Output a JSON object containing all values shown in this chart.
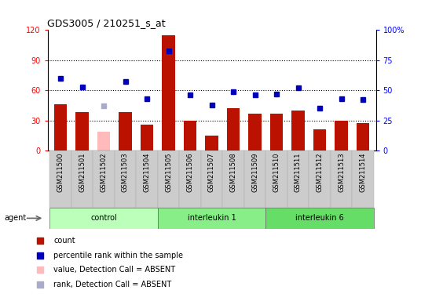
{
  "title": "GDS3005 / 210251_s_at",
  "samples": [
    "GSM211500",
    "GSM211501",
    "GSM211502",
    "GSM211503",
    "GSM211504",
    "GSM211505",
    "GSM211506",
    "GSM211507",
    "GSM211508",
    "GSM211509",
    "GSM211510",
    "GSM211511",
    "GSM211512",
    "GSM211513",
    "GSM211514"
  ],
  "bar_values": [
    46,
    38,
    19,
    38,
    26,
    115,
    30,
    15,
    42,
    37,
    37,
    40,
    21,
    30,
    27
  ],
  "bar_absent": [
    false,
    false,
    true,
    false,
    false,
    false,
    false,
    false,
    false,
    false,
    false,
    false,
    false,
    false,
    false
  ],
  "rank_values": [
    60,
    53,
    37,
    57,
    43,
    83,
    46,
    38,
    49,
    46,
    47,
    52,
    35,
    43,
    42
  ],
  "rank_absent": [
    false,
    false,
    true,
    false,
    false,
    false,
    false,
    false,
    false,
    false,
    false,
    false,
    false,
    false,
    false
  ],
  "groups": [
    {
      "label": "control",
      "start": 0,
      "end": 4,
      "color": "#bbffbb"
    },
    {
      "label": "interleukin 1",
      "start": 5,
      "end": 9,
      "color": "#88ee88"
    },
    {
      "label": "interleukin 6",
      "start": 10,
      "end": 14,
      "color": "#66dd66"
    }
  ],
  "bar_color_present": "#bb1100",
  "bar_color_absent": "#ffbbbb",
  "rank_color_present": "#0000bb",
  "rank_color_absent": "#aaaacc",
  "ylim_left": [
    0,
    120
  ],
  "yticks_left": [
    0,
    30,
    60,
    90,
    120
  ],
  "ylim_right": [
    0,
    100
  ],
  "yticks_right": [
    0,
    25,
    50,
    75,
    100
  ],
  "agent_label": "agent"
}
